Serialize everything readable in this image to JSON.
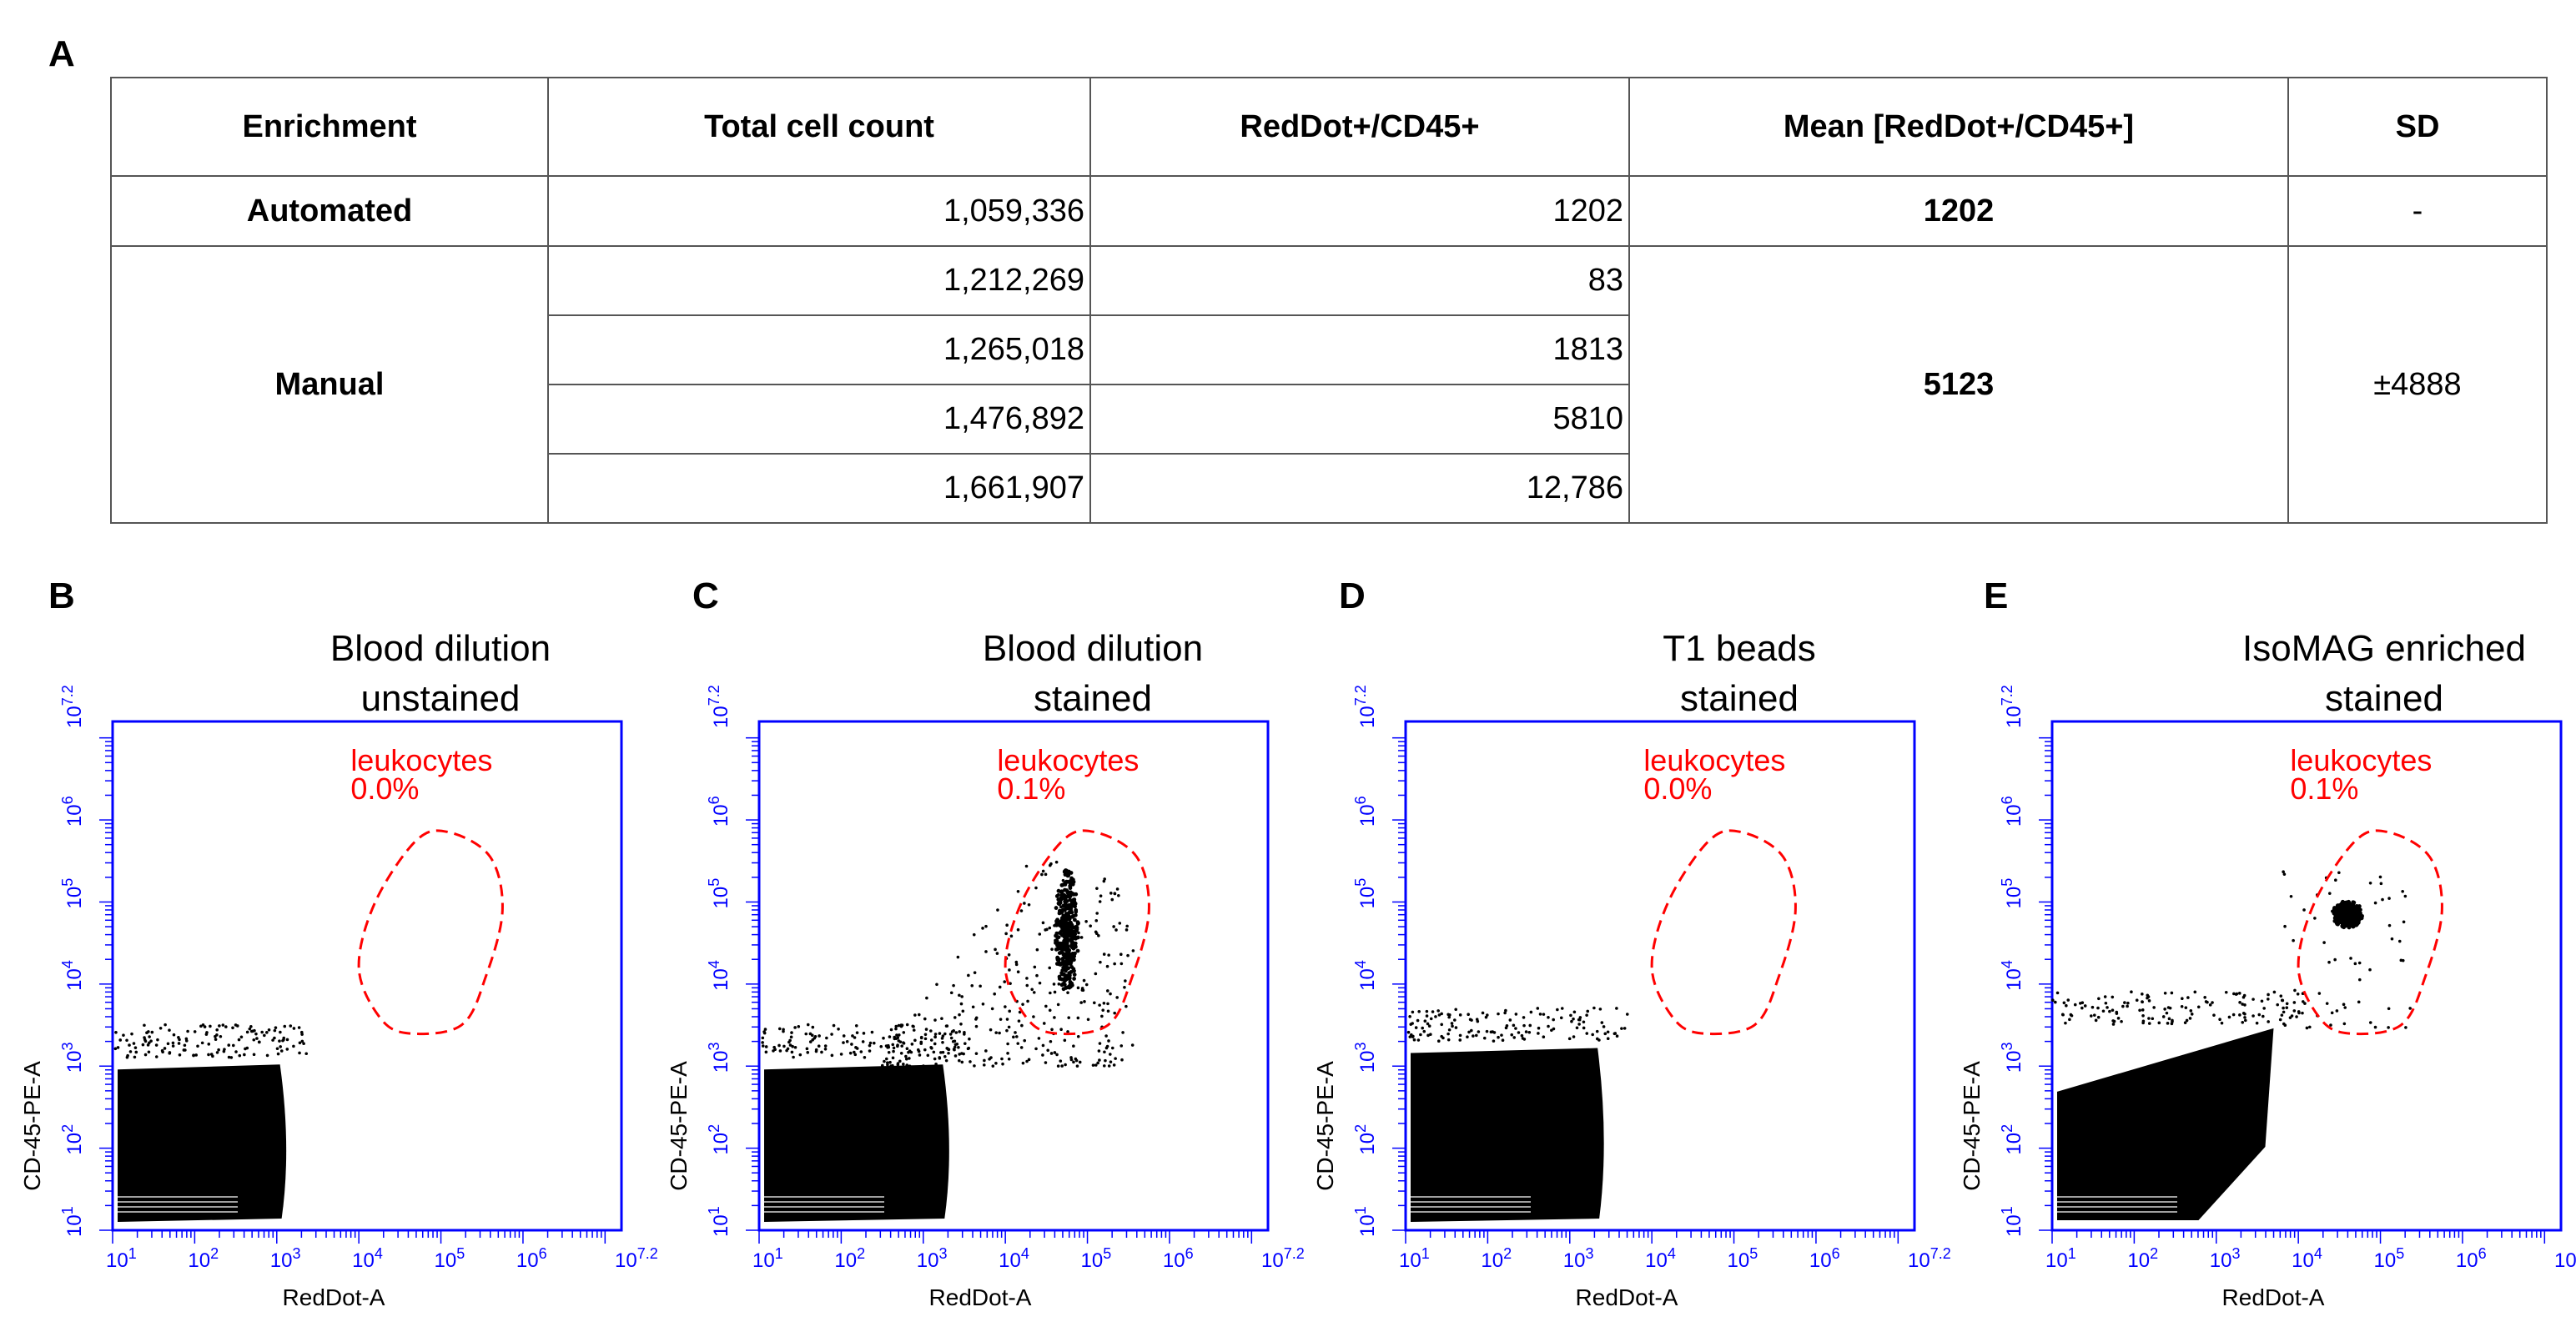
{
  "figure": {
    "panel_a_label": "A",
    "table": {
      "headers": [
        "Enrichment",
        "Total cell count",
        "RedDot+/CD45+",
        "Mean [RedDot+/CD45+]",
        "SD"
      ],
      "automated": {
        "enrichment": "Automated",
        "total_cell_count": "1,059,336",
        "reddot_cd45": "1202",
        "mean": "1202",
        "sd": "-"
      },
      "manual": {
        "enrichment": "Manual",
        "mean": "5123",
        "sd": "±4888",
        "rows": [
          {
            "total_cell_count": "1,212,269",
            "reddot_cd45": "83"
          },
          {
            "total_cell_count": "1,265,018",
            "reddot_cd45": "1813"
          },
          {
            "total_cell_count": "1,476,892",
            "reddot_cd45": "5810"
          },
          {
            "total_cell_count": "1,661,907",
            "reddot_cd45": "12,786"
          }
        ]
      }
    },
    "plots": [
      {
        "letter": "B",
        "title_line1": "Blood dilution",
        "title_line2": "unstained",
        "gate_label": "leukocytes",
        "gate_percent": "0.0%"
      },
      {
        "letter": "C",
        "title_line1": "Blood dilution",
        "title_line2": "stained",
        "gate_label": "leukocytes",
        "gate_percent": "0.1%"
      },
      {
        "letter": "D",
        "title_line1": "T1 beads",
        "title_line2": "stained",
        "gate_label": "leukocytes",
        "gate_percent": "0.0%"
      },
      {
        "letter": "E",
        "title_line1": "IsoMAG enriched",
        "title_line2": "stained",
        "gate_label": "leukocytes",
        "gate_percent": "0.1%"
      }
    ],
    "axes": {
      "x_label": "RedDot-A",
      "y_label": "CD-45-PE-A",
      "tick_labels": [
        "10^1",
        "10^2",
        "10^3",
        "10^4",
        "10^5",
        "10^6",
        "10^7.2"
      ]
    },
    "colors": {
      "axis_blue": "#0000ff",
      "gate_red": "#ff0000",
      "points": "#000000"
    }
  },
  "chart_data": [
    {
      "type": "scatter",
      "title": "Blood dilution unstained",
      "xlabel": "RedDot-A",
      "ylabel": "CD-45-PE-A",
      "xscale": "log10",
      "yscale": "log10",
      "xlim": [
        1,
        7.2
      ],
      "ylim": [
        1,
        7.2
      ],
      "gate": {
        "name": "leukocytes",
        "percent": "0.0%",
        "polygon_log10": [
          [
            4.0,
            4.2
          ],
          [
            4.2,
            5.0
          ],
          [
            4.7,
            5.75
          ],
          [
            5.1,
            5.85
          ],
          [
            5.6,
            5.55
          ],
          [
            5.75,
            4.9
          ],
          [
            5.55,
            4.1
          ],
          [
            5.25,
            3.5
          ],
          [
            4.6,
            3.4
          ],
          [
            4.25,
            3.6
          ]
        ]
      },
      "populations": [
        {
          "name": "main",
          "x_log10_range": [
            1,
            3.1
          ],
          "y_log10_range": [
            1,
            3.0
          ],
          "density": "dense"
        }
      ]
    },
    {
      "type": "scatter",
      "title": "Blood dilution stained",
      "xlabel": "RedDot-A",
      "ylabel": "CD-45-PE-A",
      "xscale": "log10",
      "yscale": "log10",
      "xlim": [
        1,
        7.2
      ],
      "ylim": [
        1,
        7.2
      ],
      "gate": {
        "name": "leukocytes",
        "percent": "0.1%",
        "polygon_log10": [
          [
            4.0,
            4.2
          ],
          [
            4.2,
            5.0
          ],
          [
            4.7,
            5.75
          ],
          [
            5.1,
            5.85
          ],
          [
            5.6,
            5.55
          ],
          [
            5.75,
            4.9
          ],
          [
            5.55,
            4.1
          ],
          [
            5.25,
            3.5
          ],
          [
            4.6,
            3.4
          ],
          [
            4.25,
            3.6
          ]
        ]
      },
      "populations": [
        {
          "name": "main",
          "x_log10_range": [
            1,
            3.3
          ],
          "y_log10_range": [
            1,
            3.0
          ],
          "density": "dense"
        },
        {
          "name": "leukocyte-cluster",
          "x_log10_center": 4.75,
          "y_log10_center": 4.65,
          "density": "cluster"
        },
        {
          "name": "scatter",
          "x_log10_range": [
            2.5,
            5.5
          ],
          "y_log10_range": [
            3.0,
            5.5
          ],
          "density": "sparse"
        }
      ]
    },
    {
      "type": "scatter",
      "title": "T1 beads stained",
      "xlabel": "RedDot-A",
      "ylabel": "CD-45-PE-A",
      "xscale": "log10",
      "yscale": "log10",
      "xlim": [
        1,
        7.2
      ],
      "ylim": [
        1,
        7.2
      ],
      "gate": {
        "name": "leukocytes",
        "percent": "0.0%",
        "polygon_log10": [
          [
            4.0,
            4.2
          ],
          [
            4.2,
            5.0
          ],
          [
            4.7,
            5.75
          ],
          [
            5.1,
            5.85
          ],
          [
            5.6,
            5.55
          ],
          [
            5.75,
            4.9
          ],
          [
            5.55,
            4.1
          ],
          [
            5.25,
            3.5
          ],
          [
            4.6,
            3.4
          ],
          [
            4.25,
            3.6
          ]
        ]
      },
      "populations": [
        {
          "name": "main",
          "x_log10_range": [
            1,
            3.4
          ],
          "y_log10_range": [
            1,
            3.2
          ],
          "density": "dense"
        }
      ]
    },
    {
      "type": "scatter",
      "title": "IsoMAG enriched stained",
      "xlabel": "RedDot-A",
      "ylabel": "CD-45-PE-A",
      "xscale": "log10",
      "yscale": "log10",
      "xlim": [
        1,
        7.2
      ],
      "ylim": [
        1,
        7.2
      ],
      "gate": {
        "name": "leukocytes",
        "percent": "0.1%",
        "polygon_log10": [
          [
            4.0,
            4.2
          ],
          [
            4.2,
            5.0
          ],
          [
            4.7,
            5.75
          ],
          [
            5.1,
            5.85
          ],
          [
            5.6,
            5.55
          ],
          [
            5.75,
            4.9
          ],
          [
            5.55,
            4.1
          ],
          [
            5.25,
            3.5
          ],
          [
            4.6,
            3.4
          ],
          [
            4.25,
            3.6
          ]
        ]
      },
      "populations": [
        {
          "name": "main",
          "x_log10_range": [
            1,
            3.8
          ],
          "y_log10_range": [
            1,
            3.4
          ],
          "density": "dense-triangle"
        },
        {
          "name": "leukocyte-cluster",
          "x_log10_center": 4.6,
          "y_log10_center": 4.85,
          "density": "cluster"
        }
      ]
    }
  ]
}
